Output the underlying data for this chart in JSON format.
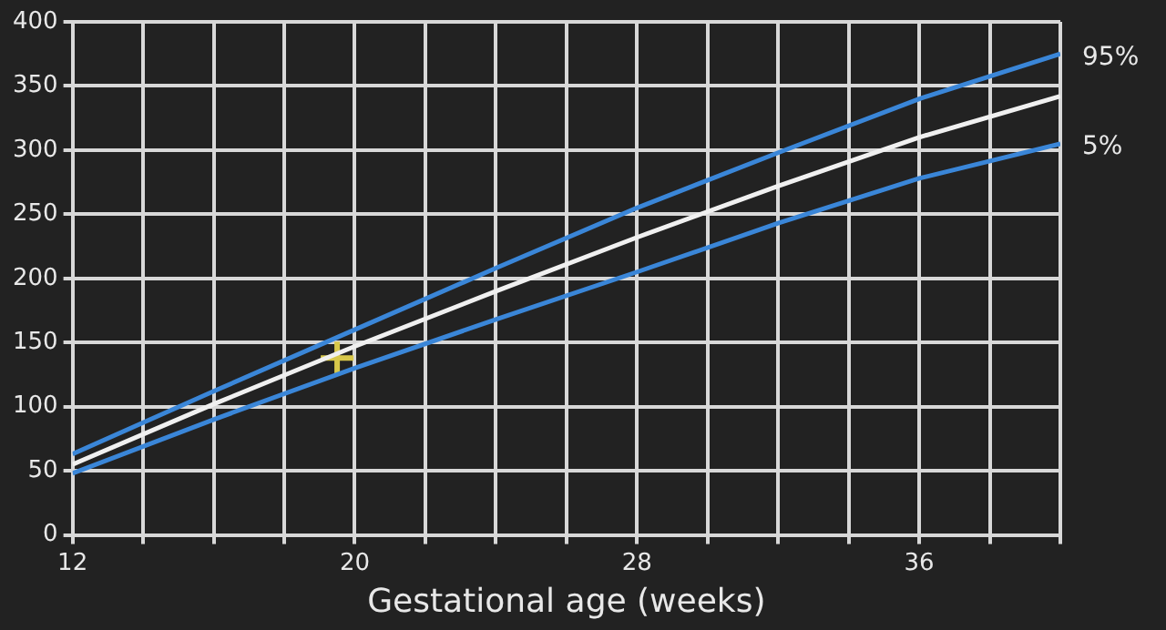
{
  "chart_data": {
    "type": "line",
    "xlabel": "Gestational age (weeks)",
    "xlim": [
      12,
      40
    ],
    "xticks": [
      12,
      {
        "value": 14,
        "label": null
      },
      {
        "value": 16,
        "label": null
      },
      {
        "value": 18,
        "label": null
      },
      20,
      {
        "value": 22,
        "label": null
      },
      {
        "value": 24,
        "label": null
      },
      {
        "value": 26,
        "label": null
      },
      28,
      {
        "value": 30,
        "label": null
      },
      {
        "value": 32,
        "label": null
      },
      {
        "value": 34,
        "label": null
      },
      36,
      {
        "value": 38,
        "label": null
      },
      {
        "value": 40,
        "label": null
      }
    ],
    "ylim": [
      0,
      400
    ],
    "yticks": [
      0,
      50,
      100,
      150,
      200,
      250,
      300,
      350,
      400
    ],
    "grid": true,
    "legend": false,
    "line_style": "solid",
    "series": [
      {
        "name": "95%",
        "color": "#3a86d8",
        "x": [
          12,
          16,
          20,
          24,
          28,
          32,
          36,
          40
        ],
        "values": [
          63,
          112,
          160,
          208,
          255,
          298,
          340,
          375
        ]
      },
      {
        "color": "#f0f0f0",
        "x": [
          12,
          16,
          20,
          24,
          28,
          32,
          36,
          40
        ],
        "values": [
          55,
          102,
          147,
          190,
          232,
          272,
          310,
          342
        ]
      },
      {
        "name": "5%",
        "color": "#3a86d8",
        "x": [
          12,
          16,
          20,
          24,
          28,
          32,
          36,
          40
        ],
        "values": [
          48,
          90,
          130,
          168,
          205,
          243,
          278,
          305
        ]
      },
      {
        "type": "scatter",
        "marker": "cross",
        "color": "#d8c84a",
        "x": [
          19.5
        ],
        "values": [
          138
        ]
      }
    ]
  }
}
